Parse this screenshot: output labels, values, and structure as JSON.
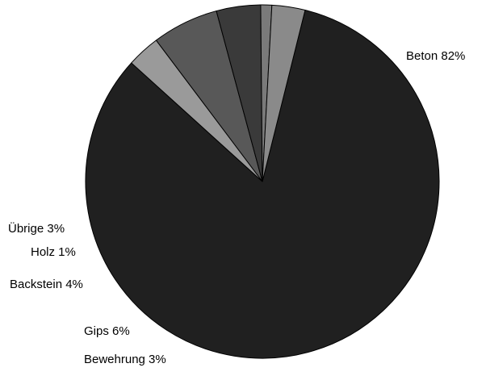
{
  "chart_data": {
    "type": "pie",
    "title": "",
    "legend": "none",
    "start_angle_deg": 14,
    "direction": "clockwise",
    "slices": [
      {
        "name": "Beton",
        "value": 82,
        "label": "Beton 82%",
        "color": "#202020"
      },
      {
        "name": "Bewehrung",
        "value": 3,
        "label": "Bewehrung 3%",
        "color": "#9a9a9a"
      },
      {
        "name": "Gips",
        "value": 6,
        "label": "Gips 6%",
        "color": "#585858"
      },
      {
        "name": "Backstein",
        "value": 4,
        "label": "Backstein 4%",
        "color": "#3a3a3a"
      },
      {
        "name": "Holz",
        "value": 1,
        "label": "Holz 1%",
        "color": "#7a7a7a"
      },
      {
        "name": "Übrige",
        "value": 3,
        "label": "Übrige 3%",
        "color": "#8a8a8a"
      }
    ]
  }
}
